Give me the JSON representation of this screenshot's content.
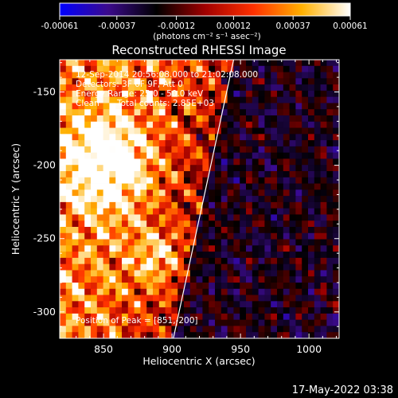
{
  "colorbar": {
    "ticks": [
      "-0.00061",
      "-0.00037",
      "-0.00012",
      "0.00012",
      "0.00037",
      "0.00061"
    ],
    "tick_values": [
      -0.00061,
      -0.00037,
      -0.00012,
      0.00012,
      0.00037,
      0.00061
    ],
    "label": "(photons cm⁻² s⁻¹ asec⁻²)",
    "colors": [
      "#0000ff",
      "#3b0a8c",
      "#000000",
      "#a00000",
      "#ff3000",
      "#ffb000",
      "#ffffff"
    ]
  },
  "chart_data": {
    "type": "heatmap",
    "title": "Reconstructed RHESSI Image",
    "xlabel": "Heliocentric X (arcsec)",
    "ylabel": "Heliocentric Y (arcsec)",
    "xlim": [
      818,
      1022
    ],
    "ylim": [
      -318,
      -128
    ],
    "x_ticks": [
      850,
      900,
      950,
      1000
    ],
    "y_ticks": [
      -150,
      -200,
      -250,
      -300
    ],
    "limb_line": {
      "x": [
        901,
        945
      ],
      "y": [
        -318,
        -128
      ],
      "color": "#ffffff"
    },
    "peak": {
      "x": 851,
      "y": -200
    }
  },
  "annotations": {
    "time_range": "12-Sep-2014 20:56:08.000 to 21:02:08.000",
    "detectors": "Detectors: 3F 6F 9F, Att 0",
    "energy": "Energy Range: 25.0 - 50.0 keV",
    "clean": "Clean",
    "counts": "Total counts: 2.85E+03",
    "peak_label": "Position of Peak = [851,-200]"
  },
  "footer": {
    "timestamp": "17-May-2022 03:38"
  }
}
